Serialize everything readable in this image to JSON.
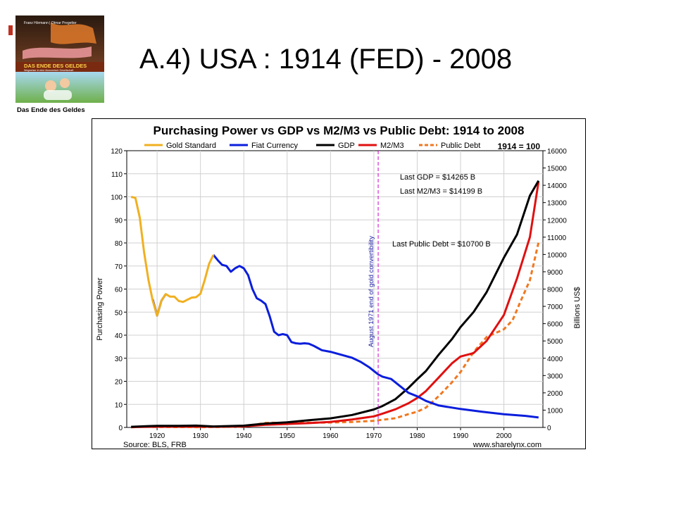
{
  "slide": {
    "title": "A.4) USA : 1914 (FED) - 2008",
    "book_cover": {
      "authors": "Franz Hörmann | Otmar Pregetter",
      "title": "DAS ENDE DES GELDES",
      "subtitle": "Wegweiser in eine ökonomisch Gesellschaft",
      "caption": "Das Ende des Geldes"
    }
  },
  "chart_data": {
    "type": "line",
    "title": "Purchasing Power vs GDP vs M2/M3 vs Public Debt: 1914 to 2008",
    "base_note": "1914 = 100",
    "xlabel": "",
    "ylabel": "Purchasing Power",
    "y2label": "Billions US$",
    "xlim": [
      1913,
      2009
    ],
    "ylim": [
      0,
      120
    ],
    "y2lim": [
      0,
      16000
    ],
    "xticks": [
      1920,
      1930,
      1940,
      1950,
      1960,
      1970,
      1980,
      1990,
      2000
    ],
    "yticks": [
      0,
      10,
      20,
      30,
      40,
      50,
      60,
      70,
      80,
      90,
      100,
      110,
      120
    ],
    "y2ticks": [
      0,
      1000,
      2000,
      3000,
      4000,
      5000,
      6000,
      7000,
      8000,
      9000,
      10000,
      11000,
      12000,
      13000,
      14000,
      15000,
      16000
    ],
    "grid": true,
    "legend_position": "top",
    "colors": {
      "gold": "#f0b020",
      "fiat": "#0a1edc",
      "gdp": "#000000",
      "m2m3": "#e01010",
      "debt": "#f07820",
      "marker": "#cc00cc"
    },
    "series": [
      {
        "name": "Gold Standard",
        "axis": "left",
        "style": "solid",
        "x": [
          1914,
          1915,
          1916,
          1917,
          1918,
          1919,
          1920,
          1921,
          1922,
          1923,
          1924,
          1925,
          1926,
          1927,
          1928,
          1929,
          1930,
          1931,
          1932,
          1933
        ],
        "y": [
          100,
          99.5,
          91,
          76,
          64,
          55,
          48.5,
          55,
          57.8,
          56.7,
          56.7,
          54.8,
          54.4,
          55.4,
          56.3,
          56.5,
          58,
          64,
          71,
          74.8
        ]
      },
      {
        "name": "Fiat Currency",
        "axis": "left",
        "style": "solid",
        "x": [
          1919,
          1920,
          1921,
          1922,
          1933,
          1934,
          1935,
          1936,
          1937,
          1938,
          1939,
          1940,
          1941,
          1942,
          1943,
          1944,
          1945,
          1946,
          1947,
          1948,
          1949,
          1950,
          1951,
          1952,
          1953,
          1954,
          1955,
          1956,
          1957,
          1958,
          1960,
          1965,
          1967,
          1969,
          1970,
          1971,
          1972,
          1974,
          1976,
          1978,
          1980,
          1982,
          1985,
          1990,
          1995,
          2000,
          2005,
          2008
        ],
        "y": [
          55.5,
          48.5,
          55,
          57.8,
          74.8,
          72.5,
          70.5,
          70,
          67.5,
          69,
          70,
          69,
          66,
          60,
          56,
          55,
          53.5,
          48,
          41.5,
          40,
          40.5,
          40,
          37,
          36.5,
          36.3,
          36.5,
          36.3,
          35.5,
          34.5,
          33.5,
          32.8,
          30.2,
          28.4,
          26,
          24.5,
          23,
          22,
          21,
          18,
          15,
          13.5,
          11.5,
          9.5,
          8,
          6.8,
          5.7,
          5,
          4.3
        ]
      },
      {
        "name": "GDP",
        "axis": "right",
        "style": "solid",
        "x": [
          1914,
          1918,
          1920,
          1925,
          1929,
          1933,
          1940,
          1945,
          1950,
          1955,
          1960,
          1965,
          1970,
          1972,
          1975,
          1978,
          1980,
          1982,
          1985,
          1988,
          1990,
          1993,
          1996,
          2000,
          2003,
          2006,
          2008
        ],
        "y": [
          37,
          76,
          92,
          93,
          105,
          57,
          101,
          223,
          294,
          415,
          526,
          719,
          1038,
          1237,
          1638,
          2294,
          2789,
          3255,
          4220,
          5103,
          5803,
          6667,
          7817,
          9817,
          11142,
          13399,
          14265
        ]
      },
      {
        "name": "M2/M3",
        "axis": "right",
        "style": "solid",
        "x": [
          1914,
          1920,
          1929,
          1933,
          1940,
          1945,
          1950,
          1955,
          1960,
          1965,
          1970,
          1972,
          1975,
          1978,
          1980,
          1982,
          1985,
          1988,
          1990,
          1993,
          1996,
          2000,
          2003,
          2006,
          2008
        ],
        "y": [
          20,
          40,
          50,
          35,
          60,
          150,
          200,
          250,
          320,
          460,
          640,
          800,
          1050,
          1400,
          1700,
          2100,
          2900,
          3700,
          4100,
          4300,
          5000,
          6500,
          8600,
          11000,
          14199
        ]
      },
      {
        "name": "Public Debt",
        "axis": "right",
        "style": "dashed",
        "x": [
          1914,
          1917,
          1919,
          1925,
          1930,
          1935,
          1940,
          1945,
          1946,
          1950,
          1955,
          1960,
          1965,
          1970,
          1975,
          1978,
          1980,
          1982,
          1985,
          1988,
          1990,
          1993,
          1996,
          2000,
          2002,
          2004,
          2006,
          2008
        ],
        "y": [
          3,
          50,
          27,
          22,
          16,
          29,
          51,
          259,
          269,
          257,
          274,
          286,
          317,
          381,
          533,
          771,
          908,
          1142,
          1817,
          2602,
          3206,
          4351,
          5225,
          5674,
          6198,
          7379,
          8507,
          10700
        ]
      }
    ],
    "annotations": [
      {
        "text": "Last GDP = $14265 B"
      },
      {
        "text": "Last M2/M3 = $14199 B"
      },
      {
        "text": "Last Public Debt = $10700 B"
      },
      {
        "text": "August 1971 end of gold convertibility",
        "x": 1971
      }
    ],
    "source": "Source: BLS, FRB",
    "website": "www.sharelynx.com"
  }
}
